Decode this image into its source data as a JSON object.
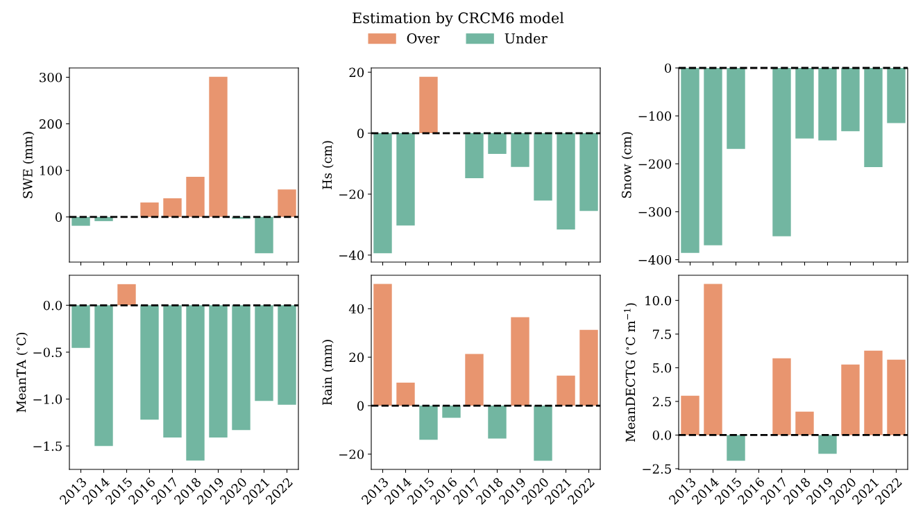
{
  "chart_data": [
    {
      "type": "bar",
      "legend_title": "Estimation by CRCM6 model",
      "legend": "top",
      "ylabel": "SWE (mm)",
      "tick_labels": "y",
      "categories": [
        "2013",
        "2014",
        "2015",
        "2016",
        "2017",
        "2018",
        "2019",
        "2020",
        "2021",
        "2022"
      ],
      "series": [
        {
          "name": "Over",
          "color": "#e8956f",
          "values": [
            null,
            null,
            null,
            31,
            40,
            86,
            301,
            null,
            null,
            59
          ]
        },
        {
          "name": "Under",
          "color": "#72b6a1",
          "values": [
            -19,
            -9,
            null,
            null,
            null,
            null,
            null,
            -4,
            -78,
            null
          ]
        }
      ],
      "ylim": [
        -97,
        320
      ],
      "yticks": [
        0,
        100,
        200,
        300
      ],
      "ref_lines": [
        {
          "axis": "y",
          "value": 0,
          "color": "#000000",
          "line_style": "dashed"
        }
      ]
    },
    {
      "type": "bar",
      "ylabel": "Hs (cm)",
      "tick_labels": "y",
      "categories": [
        "2013",
        "2014",
        "2015",
        "2016",
        "2017",
        "2018",
        "2019",
        "2020",
        "2021",
        "2022"
      ],
      "series": [
        {
          "color": "#e8956f",
          "values": [
            null,
            null,
            18.5,
            null,
            null,
            null,
            null,
            null,
            null,
            null
          ]
        },
        {
          "color": "#72b6a1",
          "values": [
            -39.4,
            -30.3,
            null,
            null,
            -14.8,
            -6.8,
            -11.1,
            -22.1,
            -31.6,
            -25.5
          ]
        }
      ],
      "ylim": [
        -42.3,
        21.4
      ],
      "yticks": [
        -40,
        -20,
        0,
        20
      ],
      "ref_lines": [
        {
          "axis": "y",
          "value": 0,
          "color": "#000000",
          "line_style": "dashed"
        }
      ]
    },
    {
      "type": "bar",
      "ylabel": "Snow (cm)",
      "tick_labels": "y",
      "categories": [
        "2013",
        "2014",
        "2015",
        "2016",
        "2017",
        "2018",
        "2019",
        "2020",
        "2021",
        "2022"
      ],
      "series": [
        {
          "color": "#72b6a1",
          "values": [
            -386,
            -370,
            -169,
            null,
            -351,
            -147,
            -151,
            -132,
            -207,
            -115
          ]
        }
      ],
      "ylim": [
        -405,
        0
      ],
      "yticks": [
        -400,
        -300,
        -200,
        -100,
        0
      ],
      "ref_lines": [
        {
          "axis": "y",
          "value": 0,
          "color": "#000000",
          "line_style": "dashed"
        }
      ]
    },
    {
      "type": "bar",
      "ylabel": "MeanTA ($^{∘}$C)",
      "categories": [
        "2013",
        "2014",
        "2015",
        "2016",
        "2017",
        "2018",
        "2019",
        "2020",
        "2021",
        "2022"
      ],
      "series": [
        {
          "color": "#e8956f",
          "values": [
            null,
            null,
            0.225,
            null,
            null,
            null,
            null,
            null,
            null,
            null
          ]
        },
        {
          "color": "#72b6a1",
          "values": [
            -0.455,
            -1.5,
            null,
            -1.22,
            -1.41,
            -1.655,
            -1.41,
            -1.33,
            -1.02,
            -1.06
          ]
        }
      ],
      "ylim": [
        -1.75,
        0.32
      ],
      "yticks": [
        {
          "value": -1.5,
          "label": "−1.5"
        },
        {
          "value": -1.0,
          "label": "−1.0"
        },
        {
          "value": -0.5,
          "label": "−0.5"
        },
        {
          "value": 0,
          "label": "0.0"
        }
      ],
      "ref_lines": [
        {
          "axis": "y",
          "value": 0,
          "color": "#000000",
          "line_style": "dashed"
        }
      ]
    },
    {
      "type": "bar",
      "ylabel": "Rain (mm)",
      "categories": [
        "2013",
        "2014",
        "2015",
        "2016",
        "2017",
        "2018",
        "2019",
        "2020",
        "2021",
        "2022"
      ],
      "series": [
        {
          "color": "#e8956f",
          "values": [
            50.2,
            9.5,
            null,
            null,
            21.3,
            null,
            36.5,
            null,
            12.4,
            31.3
          ]
        },
        {
          "color": "#72b6a1",
          "values": [
            null,
            null,
            -14.1,
            -5.0,
            null,
            -13.6,
            null,
            -22.7,
            null,
            null
          ]
        }
      ],
      "ylim": [
        -26.3,
        53.8
      ],
      "yticks": [
        -20,
        0,
        20,
        40
      ],
      "ref_lines": [
        {
          "axis": "y",
          "value": 0,
          "color": "#000000",
          "line_style": "dashed"
        }
      ]
    },
    {
      "type": "bar",
      "ylabel": "MeanDECTG ($^{∘}$C m$^{−1}$)",
      "categories": [
        "2013",
        "2014",
        "2015",
        "2016",
        "2017",
        "2018",
        "2019",
        "2020",
        "2021",
        "2022"
      ],
      "series": [
        {
          "color": "#e8956f",
          "values": [
            2.92,
            11.22,
            null,
            null,
            5.7,
            1.74,
            null,
            5.24,
            6.27,
            5.6
          ]
        },
        {
          "color": "#72b6a1",
          "values": [
            null,
            null,
            -1.91,
            null,
            null,
            null,
            -1.39,
            null,
            null,
            null
          ]
        }
      ],
      "ylim": [
        -2.55,
        11.87
      ],
      "yticks": [
        {
          "value": -2.5,
          "label": "−2.5"
        },
        {
          "value": 0,
          "label": "0.0"
        },
        {
          "value": 2.5,
          "label": "2.5"
        },
        {
          "value": 5,
          "label": "5.0"
        },
        {
          "value": 7.5,
          "label": "7.5"
        },
        {
          "value": 10,
          "label": "10.0"
        }
      ],
      "ref_lines": [
        {
          "axis": "y",
          "value": 0,
          "color": "#000000",
          "line_style": "dashed"
        }
      ]
    }
  ]
}
